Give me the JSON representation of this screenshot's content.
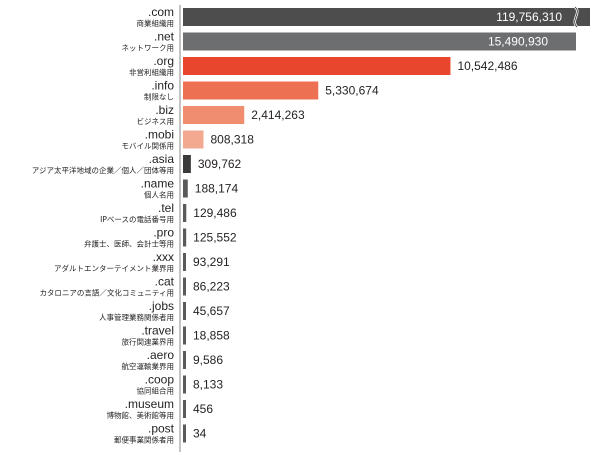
{
  "chart_data": {
    "type": "bar",
    "orientation": "horizontal",
    "categories": [
      ".com",
      ".net",
      ".org",
      ".info",
      ".biz",
      ".mobi",
      ".asia",
      ".name",
      ".tel",
      ".pro",
      ".xxx",
      ".cat",
      ".jobs",
      ".travel",
      ".aero",
      ".coop",
      ".museum",
      ".post"
    ],
    "descriptions": [
      "商業組織用",
      "ネットワーク用",
      "非営利組織用",
      "制限なし",
      "ビジネス用",
      "モバイル関係用",
      "アジア太平洋地域の企業／個人／団体等用",
      "個人名用",
      "IPベースの電話番号用",
      "弁護士、医師、会計士等用",
      "アダルトエンターテイメント業界用",
      "カタロニアの言語／文化コミュニティ用",
      "人事管理業務関係者用",
      "旅行関連業界用",
      "航空運輸業界用",
      "協同組合用",
      "博物館、美術館等用",
      "郵便事業関係者用"
    ],
    "values": [
      119756310,
      15490930,
      10542486,
      5330674,
      2414263,
      808318,
      309762,
      188174,
      129486,
      125552,
      93291,
      86223,
      45657,
      18858,
      9586,
      8133,
      456,
      34
    ],
    "value_labels": [
      "119,756,310",
      "15,490,930",
      "10,542,486",
      "5,330,674",
      "2,414,263",
      "808,318",
      "309,762",
      "188,174",
      "129,486",
      "125,552",
      "93,291",
      "86,223",
      "45,657",
      "18,858",
      "9,586",
      "8,133",
      "456",
      "34"
    ],
    "title": "",
    "xlabel": "",
    "ylabel": "",
    "axis_break": "between .com and .net (.com bar truncated)",
    "colors": [
      "#4d4d4d",
      "#6d6e70",
      "#e8472d",
      "#ee7053",
      "#f08d6e",
      "#f3a990",
      "#3a3a3a",
      "#5a5a5a",
      "#5a5a5a",
      "#5a5a5a",
      "#5a5a5a",
      "#5a5a5a",
      "#5a5a5a",
      "#5a5a5a",
      "#5a5a5a",
      "#5a5a5a",
      "#5a5a5a",
      "#5a5a5a"
    ]
  }
}
